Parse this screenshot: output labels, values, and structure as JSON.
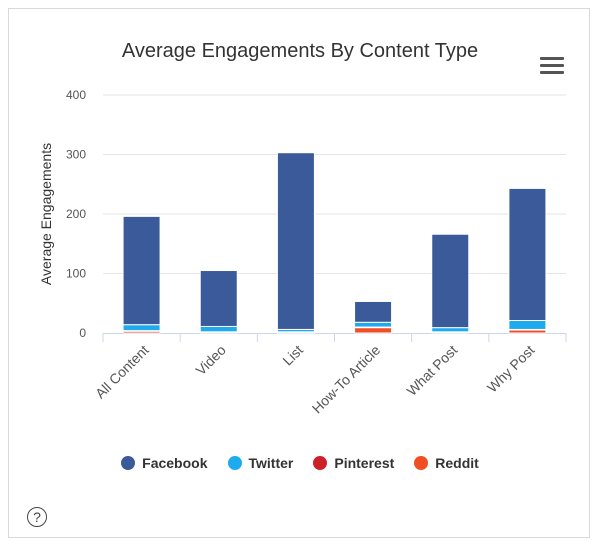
{
  "help": {
    "glyph": "?"
  },
  "chart_data": {
    "type": "bar",
    "stacked": true,
    "title": "Average Engagements By Content Type",
    "xlabel": "",
    "ylabel": "Average Engagements",
    "ylim": [
      0,
      400
    ],
    "yticks": [
      0,
      100,
      200,
      300,
      400
    ],
    "grid": true,
    "legend_position": "bottom",
    "categories": [
      "All Content",
      "Video",
      "List",
      "How-To Article",
      "What Post",
      "Why Post"
    ],
    "series": [
      {
        "name": "Reddit",
        "color": "#f04e23",
        "values": [
          3,
          1,
          1,
          9,
          1,
          5
        ]
      },
      {
        "name": "Pinterest",
        "color": "#cc2128",
        "values": [
          1,
          1,
          1,
          1,
          1,
          1
        ]
      },
      {
        "name": "Twitter",
        "color": "#1eaaee",
        "values": [
          10,
          9,
          4,
          8,
          7,
          15
        ]
      },
      {
        "name": "Facebook",
        "color": "#3a5a9a",
        "values": [
          182,
          94,
          297,
          35,
          157,
          222
        ]
      }
    ],
    "legend_order": [
      "Facebook",
      "Twitter",
      "Pinterest",
      "Reddit"
    ]
  }
}
